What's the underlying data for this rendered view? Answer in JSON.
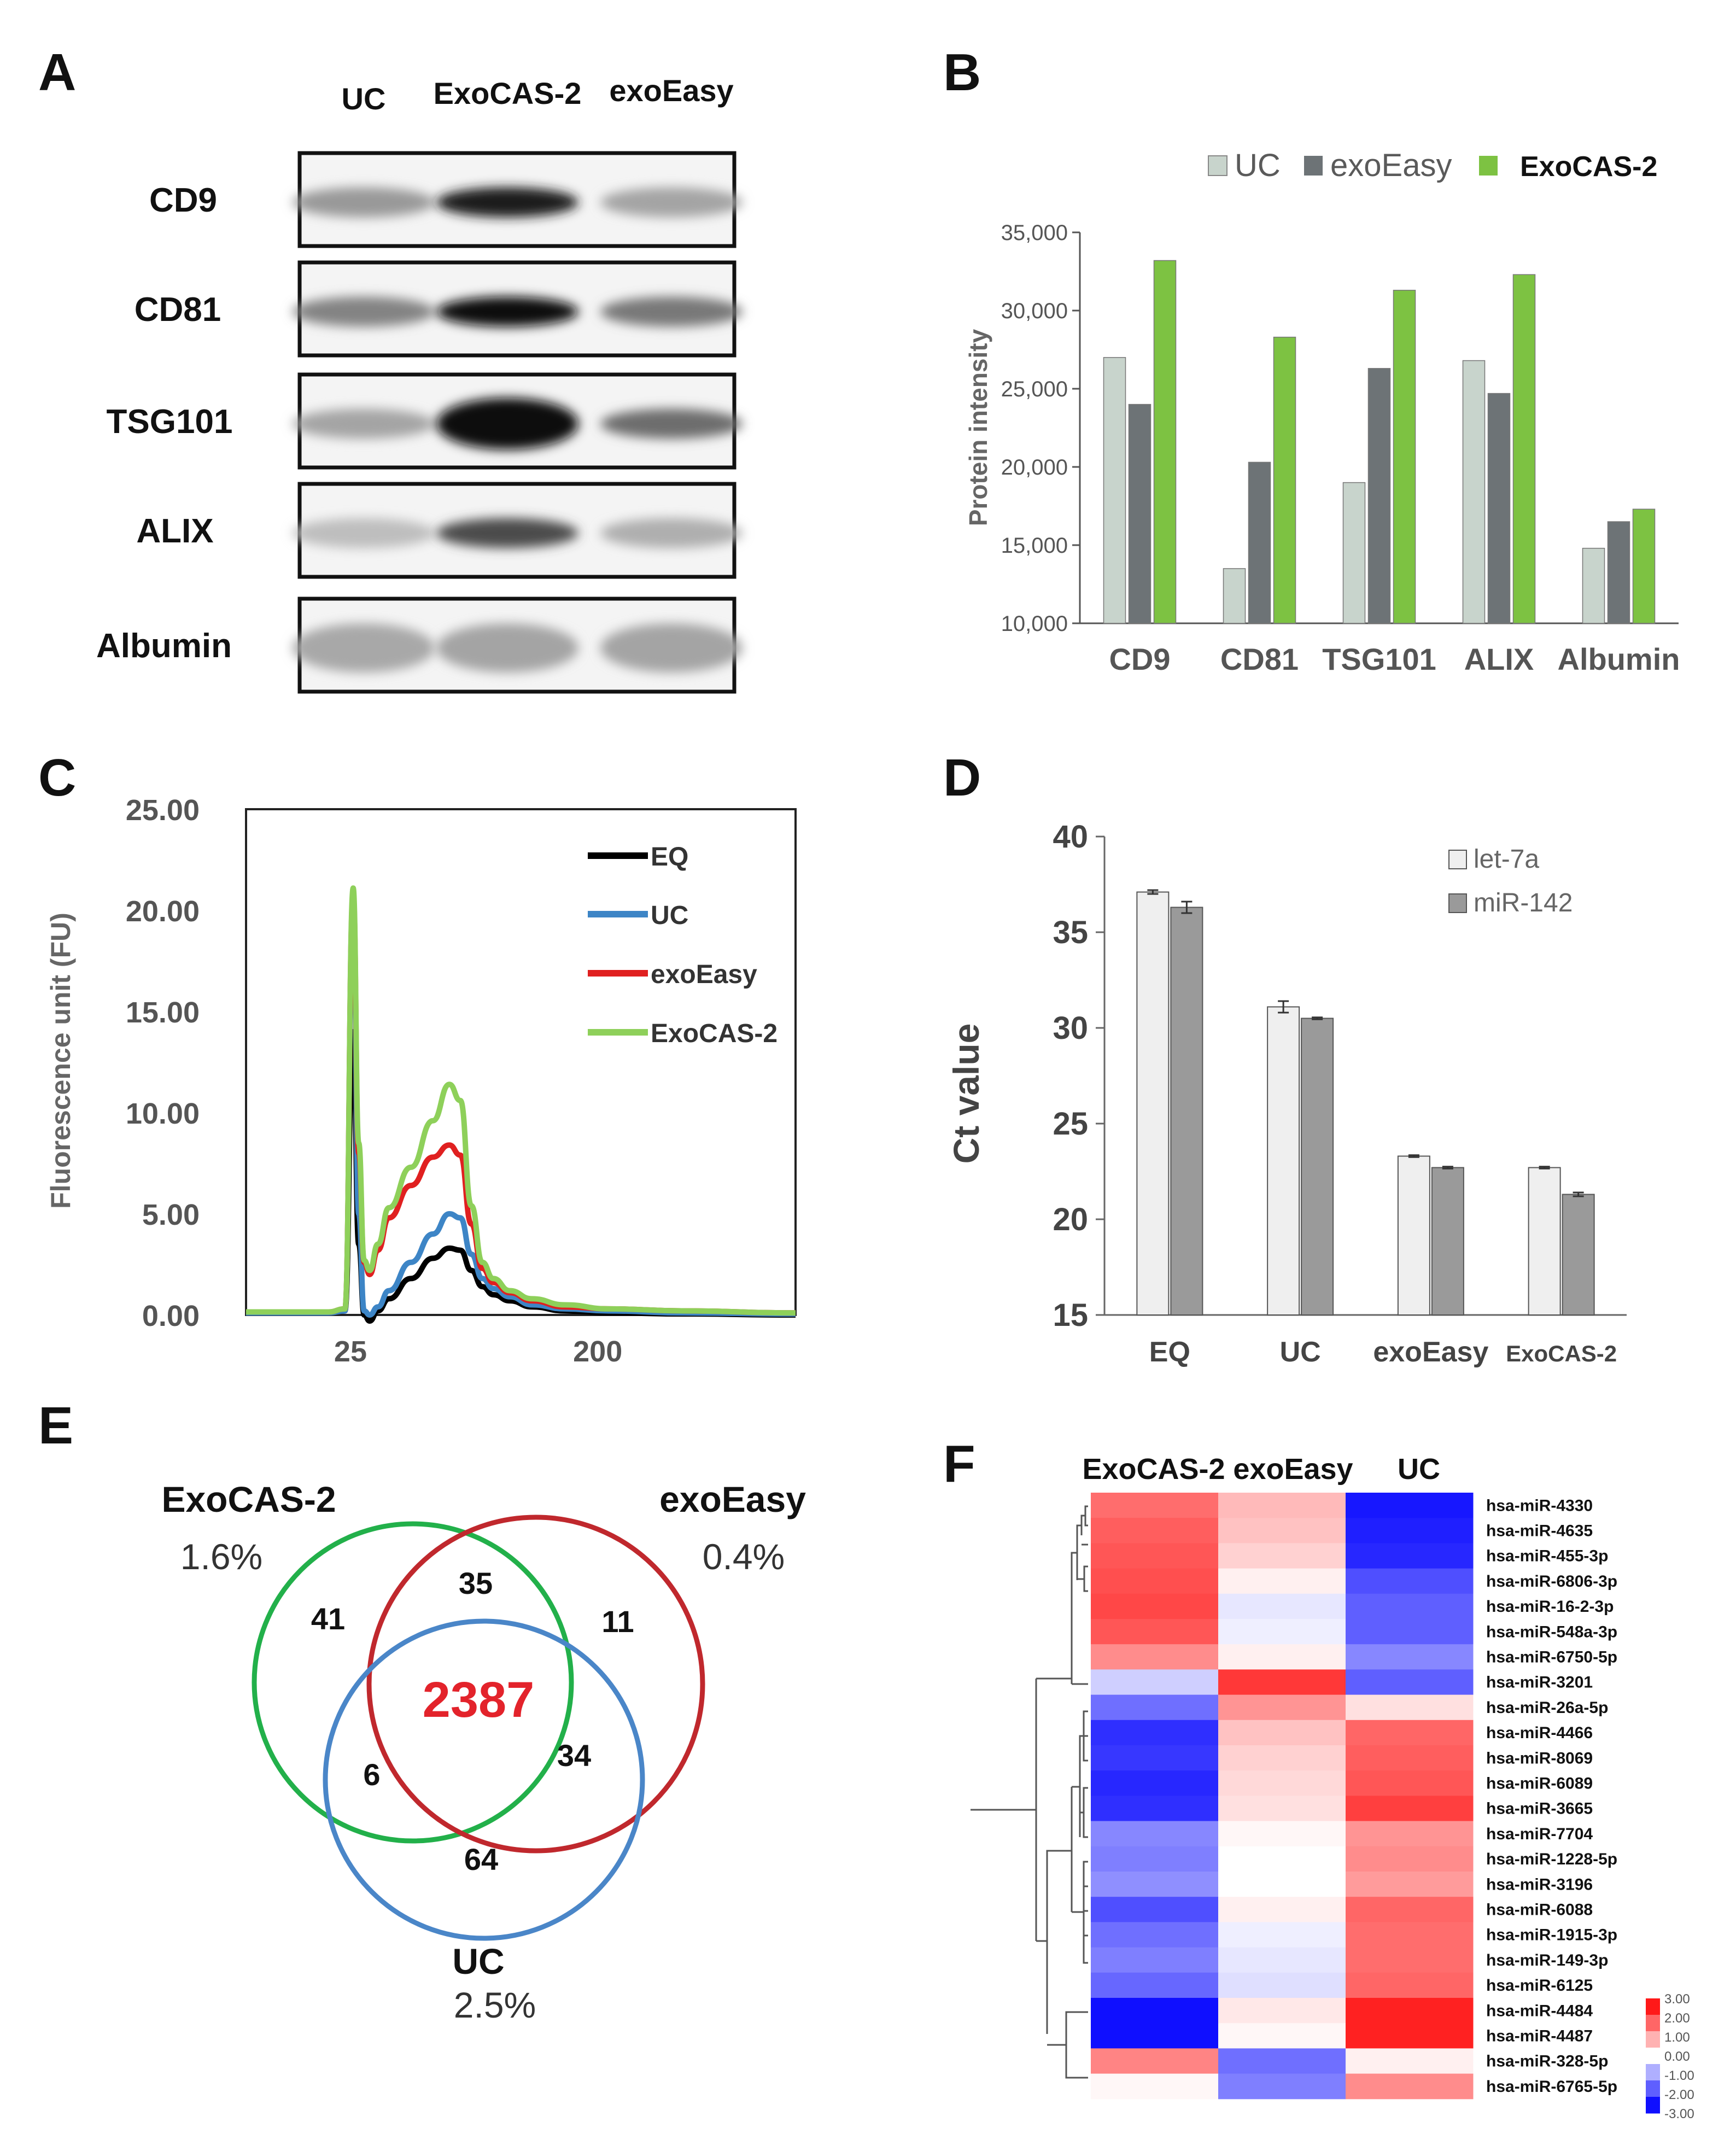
{
  "panels": {
    "A": {
      "label": "A",
      "columns": [
        "UC",
        "ExoCAS-2",
        "exoEasy"
      ],
      "rows": [
        "CD9",
        "CD81",
        "TSG101",
        "ALIX",
        "Albumin"
      ]
    },
    "B": {
      "label": "B",
      "legend": [
        "UC",
        "exoEasy",
        "ExoCAS-2"
      ]
    },
    "C": {
      "label": "C",
      "legend": [
        "EQ",
        "UC",
        "exoEasy",
        "ExoCAS-2"
      ]
    },
    "D": {
      "label": "D",
      "legend": [
        "let-7a",
        "miR-142"
      ]
    },
    "E": {
      "label": "E",
      "sets": [
        {
          "name": "ExoCAS-2",
          "pct": "1.6%",
          "color": "#22b04a"
        },
        {
          "name": "exoEasy",
          "pct": "0.4%",
          "color": "#c0282d"
        },
        {
          "name": "UC",
          "pct": "2.5%",
          "color": "#4a86c8"
        }
      ],
      "regions": {
        "exocas_only": "41",
        "exocas_exoeasy": "35",
        "exoeasy_only": "11",
        "all_three": "2387",
        "exocas_uc": "6",
        "exoeasy_uc": "34",
        "uc_only": "64"
      }
    },
    "F": {
      "label": "F",
      "columns": [
        "ExoCAS-2",
        "exoEasy",
        "UC"
      ],
      "rows": [
        {
          "name": "hsa-miR-4330",
          "values": [
            1.9,
            0.9,
            -2.9
          ]
        },
        {
          "name": "hsa-miR-4635",
          "values": [
            2.1,
            0.8,
            -2.8
          ]
        },
        {
          "name": "hsa-miR-455-3p",
          "values": [
            2.2,
            0.6,
            -2.7
          ]
        },
        {
          "name": "hsa-miR-6806-3p",
          "values": [
            2.3,
            0.2,
            -2.2
          ]
        },
        {
          "name": "hsa-miR-16-2-3p",
          "values": [
            2.4,
            -0.3,
            -2.0
          ]
        },
        {
          "name": "hsa-miR-548a-3p",
          "values": [
            2.2,
            -0.2,
            -2.0
          ]
        },
        {
          "name": "hsa-miR-6750-5p",
          "values": [
            1.5,
            0.2,
            -1.5
          ]
        },
        {
          "name": "hsa-miR-3201",
          "values": [
            -0.6,
            2.6,
            -2.0
          ]
        },
        {
          "name": "hsa-miR-26a-5p",
          "values": [
            -1.8,
            1.4,
            0.4
          ]
        },
        {
          "name": "hsa-miR-4466",
          "values": [
            -2.6,
            0.8,
            2.0
          ]
        },
        {
          "name": "hsa-miR-8069",
          "values": [
            -2.5,
            0.6,
            2.1
          ]
        },
        {
          "name": "hsa-miR-6089",
          "values": [
            -2.7,
            0.5,
            2.2
          ]
        },
        {
          "name": "hsa-miR-3665",
          "values": [
            -2.6,
            0.4,
            2.5
          ]
        },
        {
          "name": "hsa-miR-7704",
          "values": [
            -1.5,
            0.1,
            1.4
          ]
        },
        {
          "name": "hsa-miR-1228-5p",
          "values": [
            -1.6,
            0.0,
            1.5
          ]
        },
        {
          "name": "hsa-miR-3196",
          "values": [
            -1.4,
            0.0,
            1.3
          ]
        },
        {
          "name": "hsa-miR-6088",
          "values": [
            -2.2,
            0.2,
            2.0
          ]
        },
        {
          "name": "hsa-miR-1915-3p",
          "values": [
            -1.8,
            -0.2,
            1.9
          ]
        },
        {
          "name": "hsa-miR-149-3p",
          "values": [
            -1.6,
            -0.3,
            1.9
          ]
        },
        {
          "name": "hsa-miR-6125",
          "values": [
            -1.9,
            -0.4,
            2.0
          ]
        },
        {
          "name": "hsa-miR-4484",
          "values": [
            -3.0,
            0.3,
            2.9
          ]
        },
        {
          "name": "hsa-miR-4487",
          "values": [
            -3.0,
            0.1,
            2.9
          ]
        },
        {
          "name": "hsa-miR-328-5p",
          "values": [
            1.6,
            -1.8,
            0.2
          ]
        },
        {
          "name": "hsa-miR-6765-5p",
          "values": [
            0.1,
            -1.6,
            1.5
          ]
        }
      ],
      "colorbar_labels": [
        "3.00",
        "2.00",
        "1.00",
        "0.00",
        "-1.00",
        "-2.00",
        "-3.00"
      ]
    }
  },
  "chart_data": [
    {
      "panel": "B",
      "type": "bar",
      "title": "",
      "categories": [
        "CD9",
        "CD81",
        "TSG101",
        "ALIX",
        "Albumin"
      ],
      "series": [
        {
          "name": "UC",
          "color": "#c8d4cc",
          "values": [
            27000,
            13500,
            19000,
            26800,
            14800
          ]
        },
        {
          "name": "exoEasy",
          "color": "#6d7376",
          "values": [
            24000,
            20300,
            26300,
            24700,
            16500
          ]
        },
        {
          "name": "ExoCAS-2",
          "color": "#7dc242",
          "values": [
            33200,
            28300,
            31300,
            32300,
            17300
          ]
        }
      ],
      "xlabel": "",
      "ylabel": "Protein intensity",
      "ylim": [
        10000,
        35000
      ],
      "yticks": [
        "10,000",
        "15,000",
        "20,000",
        "25,000",
        "30,000",
        "35,000"
      ]
    },
    {
      "panel": "C",
      "type": "line",
      "title": "",
      "xlabel": "",
      "ylabel": "Fluorescence unit (FU)",
      "ylim": [
        0,
        25
      ],
      "yticks": [
        "0.00",
        "5.00",
        "10.00",
        "15.00",
        "20.00",
        "25.00"
      ],
      "xticks": [
        {
          "label": "25",
          "pos": 0.19
        },
        {
          "label": "200",
          "pos": 0.64
        }
      ],
      "x": [
        0,
        0.15,
        0.18,
        0.195,
        0.205,
        0.215,
        0.225,
        0.24,
        0.26,
        0.3,
        0.34,
        0.37,
        0.39,
        0.41,
        0.43,
        0.45,
        0.48,
        0.52,
        0.58,
        0.66,
        0.8,
        1.0
      ],
      "series": [
        {
          "name": "EQ",
          "color": "#000000",
          "values": [
            0.1,
            0.1,
            0.2,
            14.0,
            3.5,
            0.0,
            -0.3,
            0.2,
            0.8,
            1.8,
            2.8,
            3.3,
            3.2,
            2.2,
            1.4,
            1.0,
            0.7,
            0.4,
            0.2,
            0.1,
            0.05,
            0.0
          ]
        },
        {
          "name": "UC",
          "color": "#3d85c6",
          "values": [
            0.1,
            0.1,
            0.2,
            20.5,
            5.0,
            0.2,
            0.0,
            0.4,
            1.2,
            2.6,
            4.0,
            5.0,
            4.8,
            3.0,
            1.8,
            1.3,
            0.9,
            0.5,
            0.3,
            0.2,
            0.1,
            0.05
          ]
        },
        {
          "name": "exoEasy",
          "color": "#e02020",
          "values": [
            0.15,
            0.15,
            0.3,
            20.8,
            8.0,
            2.6,
            2.0,
            3.2,
            4.8,
            6.4,
            7.8,
            8.4,
            7.9,
            4.5,
            2.3,
            1.6,
            1.1,
            0.7,
            0.4,
            0.3,
            0.2,
            0.1
          ]
        },
        {
          "name": "ExoCAS-2",
          "color": "#8ed05a",
          "values": [
            0.15,
            0.15,
            0.3,
            21.1,
            8.5,
            2.7,
            2.2,
            3.5,
            5.3,
            7.3,
            9.6,
            11.4,
            10.6,
            5.4,
            2.6,
            1.8,
            1.2,
            0.8,
            0.5,
            0.3,
            0.2,
            0.1
          ]
        }
      ]
    },
    {
      "panel": "D",
      "type": "bar",
      "title": "",
      "categories": [
        "EQ",
        "UC",
        "exoEasy",
        "ExoCAS-2"
      ],
      "series": [
        {
          "name": "let-7a",
          "color": "#efefef",
          "values": [
            37.1,
            31.1,
            23.3,
            22.7
          ]
        },
        {
          "name": "miR-142",
          "color": "#9a9a9a",
          "values": [
            36.3,
            30.5,
            22.7,
            21.3
          ]
        }
      ],
      "errors": [
        [
          0.1,
          0.3,
          0.05,
          0.05
        ],
        [
          0.3,
          0.05,
          0.05,
          0.1
        ]
      ],
      "xlabel": "",
      "ylabel": "Ct value",
      "ylim": [
        15,
        40
      ],
      "yticks": [
        "15",
        "20",
        "25",
        "30",
        "35",
        "40"
      ]
    }
  ]
}
